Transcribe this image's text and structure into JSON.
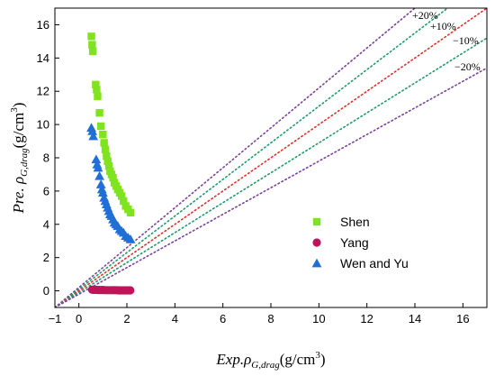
{
  "chart_data": {
    "type": "scatter",
    "xlabel": {
      "prefix": "Exp.",
      "rho": "ρ",
      "sub": "G,drag",
      "unit": "(g/cm",
      "sup": "3",
      "close": ")"
    },
    "ylabel": {
      "prefix": "Pre. ",
      "rho": "ρ",
      "sub": "G,drag",
      "unit": "(g/cm",
      "sup": "3",
      "close": ")"
    },
    "xlim": [
      -1,
      17
    ],
    "ylim": [
      -1,
      17
    ],
    "xticks": [
      -1,
      0,
      2,
      4,
      6,
      8,
      10,
      12,
      14,
      16
    ],
    "yticks": [
      0,
      2,
      4,
      6,
      8,
      10,
      12,
      14,
      16
    ],
    "grid": false,
    "legend_position": "center-right",
    "reference_lines": [
      {
        "label": "+20%",
        "slope": 1.2,
        "color": "#7b3fa0"
      },
      {
        "label": "+10%",
        "slope": 1.1,
        "color": "#1f9a6a"
      },
      {
        "label": "",
        "slope": 1.0,
        "color": "#e0302a"
      },
      {
        "label": "−10%",
        "slope": 0.9,
        "color": "#1f9a6a"
      },
      {
        "label": "−20%",
        "slope": 0.8,
        "color": "#7b3fa0"
      }
    ],
    "series": [
      {
        "name": "Shen",
        "marker": "square",
        "color": "#7fe31f",
        "x": [
          0.52,
          0.55,
          0.58,
          0.7,
          0.74,
          0.78,
          0.86,
          0.92,
          1.0,
          1.05,
          1.1,
          1.15,
          1.2,
          1.25,
          1.3,
          1.36,
          1.42,
          1.48,
          1.55,
          1.62,
          1.7,
          1.78,
          1.86,
          1.95,
          2.05,
          2.15
        ],
        "y": [
          15.3,
          14.8,
          14.4,
          12.4,
          12.1,
          11.7,
          10.7,
          9.9,
          9.4,
          8.9,
          8.5,
          8.1,
          7.8,
          7.5,
          7.2,
          7.0,
          6.8,
          6.5,
          6.3,
          6.1,
          5.9,
          5.7,
          5.4,
          5.1,
          4.9,
          4.7
        ]
      },
      {
        "name": "Yang",
        "marker": "circle",
        "color": "#c0145a",
        "x": [
          0.55,
          0.62,
          0.7,
          0.78,
          0.86,
          0.94,
          1.02,
          1.1,
          1.18,
          1.26,
          1.34,
          1.42,
          1.5,
          1.58,
          1.66,
          1.74,
          1.82,
          1.9,
          1.98,
          2.06,
          2.14
        ],
        "y": [
          0.07,
          0.06,
          0.06,
          0.05,
          0.05,
          0.05,
          0.05,
          0.04,
          0.04,
          0.04,
          0.04,
          0.04,
          0.04,
          0.04,
          0.03,
          0.03,
          0.03,
          0.03,
          0.03,
          0.03,
          0.03
        ]
      },
      {
        "name": "Wen and Yu",
        "marker": "triangle",
        "color": "#1f6fd6",
        "x": [
          0.52,
          0.56,
          0.6,
          0.72,
          0.76,
          0.8,
          0.86,
          0.92,
          0.96,
          1.0,
          1.05,
          1.1,
          1.15,
          1.2,
          1.25,
          1.3,
          1.36,
          1.42,
          1.48,
          1.55,
          1.62,
          1.7,
          1.78,
          1.86,
          1.95,
          2.05,
          2.15
        ],
        "y": [
          9.8,
          9.6,
          9.3,
          7.9,
          7.6,
          7.4,
          6.9,
          6.4,
          6.1,
          5.9,
          5.6,
          5.4,
          5.2,
          5.0,
          4.8,
          4.6,
          4.5,
          4.3,
          4.1,
          4.0,
          3.9,
          3.7,
          3.6,
          3.5,
          3.3,
          3.2,
          3.1
        ]
      }
    ]
  }
}
